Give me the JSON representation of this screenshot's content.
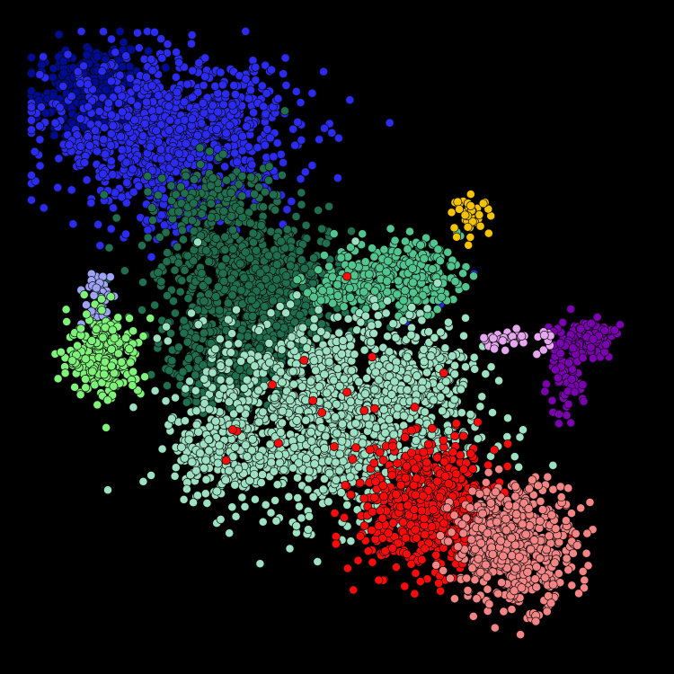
{
  "chart_data": {
    "type": "scatter",
    "title": "",
    "xlabel": "",
    "ylabel": "",
    "background": "#000000",
    "grid": false,
    "legend": "none",
    "axes_visible": false,
    "xlim": [
      0,
      100
    ],
    "ylim": [
      0,
      100
    ],
    "series": [
      {
        "color": "#000c96",
        "clusters": [
          {
            "center": [
              10,
              90
            ],
            "spread": [
              4.5,
              3.5
            ],
            "count": 380
          }
        ]
      },
      {
        "color": "#2b2bf5",
        "clusters": [
          {
            "center": [
              23,
              83
            ],
            "spread": [
              10,
              6
            ],
            "count": 950
          },
          {
            "center": [
              24,
              72
            ],
            "spread": [
              4,
              3
            ],
            "count": 60
          },
          {
            "center": [
              57,
              49
            ],
            "spread": [
              8,
              8
            ],
            "count": 10
          }
        ]
      },
      {
        "color": "#1f6e4d",
        "clusters": [
          {
            "center": [
              37,
              58
            ],
            "spread": [
              8,
              5.5
            ],
            "count": 750
          },
          {
            "center": [
              34,
              44
            ],
            "spread": [
              5,
              4
            ],
            "count": 180
          },
          {
            "center": [
              30,
              72
            ],
            "spread": [
              6,
              3.5
            ],
            "count": 160
          },
          {
            "center": [
              28,
              45
            ],
            "spread": [
              3,
              3
            ],
            "count": 100
          }
        ]
      },
      {
        "color": "#52c48e",
        "clusters": [
          {
            "center": [
              60,
              60
            ],
            "spread": [
              5,
              3
            ],
            "count": 260
          },
          {
            "center": [
              51,
              58
            ],
            "spread": [
              3,
              2
            ],
            "count": 70
          }
        ]
      },
      {
        "color": "#9ee0c2",
        "clusters": [
          {
            "center": [
              49,
              37
            ],
            "spread": [
              11,
              8
            ],
            "count": 1250
          },
          {
            "center": [
              64,
              45
            ],
            "spread": [
              4,
              4
            ],
            "count": 150
          },
          {
            "center": [
              31,
              30
            ],
            "spread": [
              4,
              3
            ],
            "count": 170
          }
        ]
      },
      {
        "color": "#ff0a0a",
        "clusters": [
          {
            "center": [
              65,
              22
            ],
            "spread": [
              5.5,
              5
            ],
            "count": 650
          },
          {
            "center": [
              50,
              38
            ],
            "spread": [
              9,
              8
            ],
            "count": 18
          }
        ]
      },
      {
        "color": "#f58585",
        "clusters": [
          {
            "center": [
              79,
              16
            ],
            "spread": [
              5,
              5
            ],
            "count": 550
          }
        ]
      },
      {
        "color": "#7b00b0",
        "clusters": [
          {
            "center": [
              91,
              50
            ],
            "spread": [
              2.2,
              1.5
            ],
            "count": 130
          },
          {
            "center": [
              87,
              43
            ],
            "spread": [
              1.6,
              3
            ],
            "count": 80
          }
        ]
      },
      {
        "color": "#e7a7f0",
        "clusters": [
          {
            "center": [
              79,
              49.5
            ],
            "spread": [
              3.5,
              0.9
            ],
            "count": 40
          }
        ]
      },
      {
        "color": "#f5c300",
        "clusters": [
          {
            "center": [
              72,
              70
            ],
            "spread": [
              1.5,
              1.5
            ],
            "count": 40
          }
        ]
      },
      {
        "color": "#9da3f7",
        "clusters": [
          {
            "center": [
              11,
              56
            ],
            "spread": [
              1.2,
              2.2
            ],
            "count": 60
          }
        ]
      },
      {
        "color": "#7ff27a",
        "clusters": [
          {
            "center": [
              12,
              47
            ],
            "spread": [
              3,
              3.5
            ],
            "count": 260
          }
        ]
      }
    ]
  }
}
